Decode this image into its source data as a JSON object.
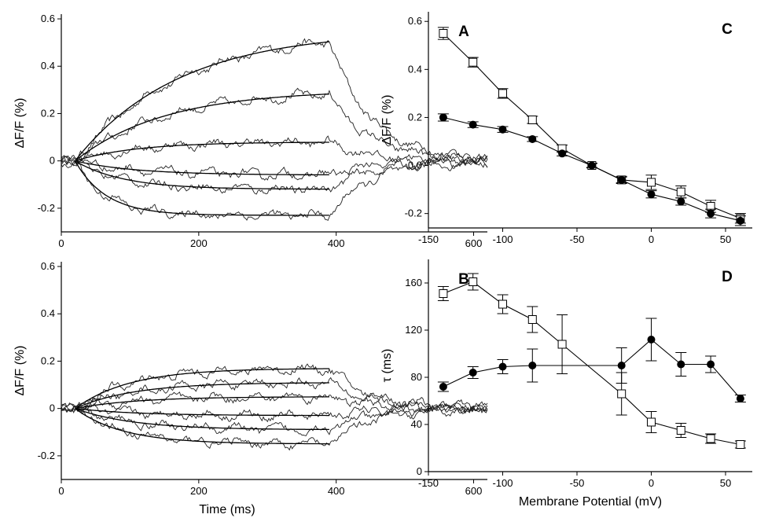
{
  "chart_data": [
    {
      "panel": "A",
      "type": "line",
      "xlabel": "",
      "ylabel": "ΔF/F (%)",
      "xlim": [
        0,
        620
      ],
      "ylim": [
        -0.3,
        0.62
      ],
      "xticks": [
        0,
        200,
        400,
        600
      ],
      "xticklabels": [
        "0",
        "200",
        "400",
        "600"
      ],
      "yticks": [
        -0.2,
        0,
        0.2,
        0.4,
        0.6
      ],
      "yticklabels": [
        "-0.2",
        "0",
        "0.2",
        "0.4",
        "0.6"
      ],
      "pulse_on_ms": 20,
      "pulse_off_ms": 390,
      "series": [
        {
          "amplitude": 0.55,
          "tau_ms": 150
        },
        {
          "amplitude": 0.3,
          "tau_ms": 130
        },
        {
          "amplitude": 0.08,
          "tau_ms": 90
        },
        {
          "amplitude": -0.06,
          "tau_ms": 90
        },
        {
          "amplitude": -0.12,
          "tau_ms": 70
        },
        {
          "amplitude": -0.23,
          "tau_ms": 45
        }
      ]
    },
    {
      "panel": "B",
      "type": "line",
      "xlabel": "Time (ms)",
      "ylabel": "ΔF/F (%)",
      "xlim": [
        0,
        620
      ],
      "ylim": [
        -0.3,
        0.62
      ],
      "xticks": [
        0,
        200,
        400,
        600
      ],
      "xticklabels": [
        "0",
        "200",
        "400",
        "600"
      ],
      "yticks": [
        -0.2,
        0,
        0.2,
        0.4,
        0.6
      ],
      "yticklabels": [
        "-0.2",
        "0",
        "0.2",
        "0.4",
        "0.6"
      ],
      "pulse_on_ms": 20,
      "pulse_off_ms": 390,
      "series": [
        {
          "amplitude": 0.17,
          "tau_ms": 80
        },
        {
          "amplitude": 0.11,
          "tau_ms": 85
        },
        {
          "amplitude": 0.05,
          "tau_ms": 90
        },
        {
          "amplitude": -0.03,
          "tau_ms": 90
        },
        {
          "amplitude": -0.09,
          "tau_ms": 85
        },
        {
          "amplitude": -0.15,
          "tau_ms": 70
        }
      ]
    },
    {
      "panel": "C",
      "type": "line",
      "xlabel": "",
      "ylabel": "ΔF/F (%)",
      "xlim": [
        -150,
        68
      ],
      "ylim": [
        -0.26,
        0.64
      ],
      "xticks": [
        -150,
        -100,
        -50,
        0,
        50
      ],
      "xticklabels": [
        "-150",
        "-100",
        "-50",
        "0",
        "50"
      ],
      "yticks": [
        -0.2,
        0.0,
        0.2,
        0.4,
        0.6
      ],
      "yticklabels": [
        "-0.2",
        "0.0",
        "0.2",
        "0.4",
        "0.6"
      ],
      "series": [
        {
          "marker": "open-square",
          "x": [
            -140,
            -120,
            -100,
            -80,
            -60,
            -40,
            -20,
            0,
            20,
            40,
            60
          ],
          "y": [
            0.55,
            0.43,
            0.3,
            0.19,
            0.07,
            0.0,
            -0.06,
            -0.07,
            -0.11,
            -0.17,
            -0.22
          ],
          "err": [
            0.025,
            0.02,
            0.02,
            0.015,
            0.015,
            0.01,
            0.015,
            0.03,
            0.025,
            0.025,
            0.02
          ]
        },
        {
          "marker": "filled-circle",
          "x": [
            -140,
            -120,
            -100,
            -80,
            -60,
            -40,
            -20,
            0,
            20,
            40,
            60
          ],
          "y": [
            0.2,
            0.17,
            0.15,
            0.11,
            0.05,
            0.0,
            -0.06,
            -0.12,
            -0.15,
            -0.2,
            -0.23
          ],
          "err": [
            0.015,
            0.012,
            0.012,
            0.01,
            0.01,
            0.008,
            0.012,
            0.015,
            0.015,
            0.018,
            0.02
          ]
        }
      ]
    },
    {
      "panel": "D",
      "type": "line",
      "xlabel": "Membrane Potential (mV)",
      "ylabel": "τ (ms)",
      "xlim": [
        -150,
        68
      ],
      "ylim": [
        0,
        180
      ],
      "xticks": [
        -150,
        -100,
        -50,
        0,
        50
      ],
      "xticklabels": [
        "-150",
        "-100",
        "-50",
        "0",
        "50"
      ],
      "yticks": [
        0,
        40,
        80,
        120,
        160
      ],
      "yticklabels": [
        "0",
        "40",
        "80",
        "120",
        "160"
      ],
      "series": [
        {
          "marker": "open-square",
          "x": [
            -140,
            -120,
            -100,
            -80,
            -60,
            -20,
            0,
            20,
            40,
            60
          ],
          "y": [
            151,
            161,
            142,
            129,
            108,
            66,
            42,
            35,
            28,
            23
          ],
          "err": [
            6,
            7,
            8,
            11,
            25,
            18,
            9,
            6,
            4,
            3
          ]
        },
        {
          "marker": "filled-circle",
          "x": [
            -140,
            -120,
            -100,
            -80,
            -20,
            0,
            20,
            40,
            60
          ],
          "y": [
            72,
            84,
            89,
            90,
            90,
            112,
            91,
            91,
            62
          ],
          "err": [
            4,
            5,
            6,
            14,
            15,
            18,
            10,
            7,
            3
          ]
        }
      ]
    }
  ]
}
